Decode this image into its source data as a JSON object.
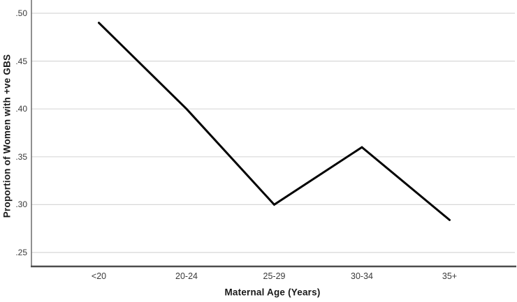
{
  "chart_data": {
    "type": "line",
    "title": "",
    "categories": [
      "<20",
      "20-24",
      "25-29",
      "30-34",
      "35+"
    ],
    "series": [
      {
        "name": "Proportion of Women with +ve GBS",
        "values": [
          0.49,
          0.4,
          0.3,
          0.36,
          0.284
        ]
      }
    ],
    "xlabel": "Maternal Age (Years)",
    "ylabel": "Proportion of Women with +ve GBS",
    "ytick_values": [
      0.5,
      0.45,
      0.4,
      0.35,
      0.3,
      0.25
    ],
    "ytick_labels": [
      ".50",
      ".45",
      ".40",
      ".35",
      ".30",
      ".25"
    ],
    "ylim": [
      0.235,
      0.514
    ],
    "grid": "horizontal-gridlines-on",
    "legend": "none",
    "colors": {
      "line": "#000000",
      "gridline": "#d8d8d8",
      "axis": "#6b6b6b",
      "bottom_axis": "#4d4d4d",
      "tick_text": "#3a3a3a",
      "title_text": "#1a1a1a",
      "background": "#ffffff"
    }
  }
}
